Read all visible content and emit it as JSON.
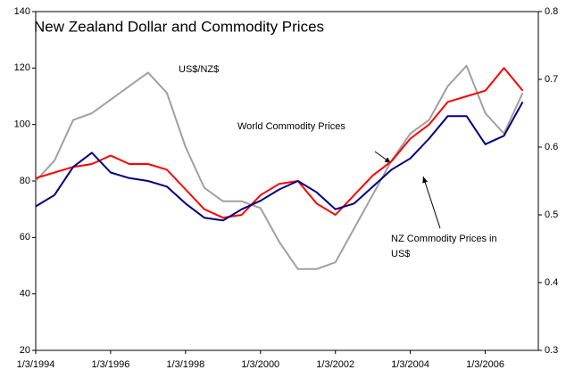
{
  "chart_data": {
    "type": "line",
    "title": "New Zealand Dollar and Commodity Prices",
    "x": [
      "1/3/1994",
      "1/9/1994",
      "1/3/1995",
      "1/9/1995",
      "1/3/1996",
      "1/9/1996",
      "1/3/1997",
      "1/9/1997",
      "1/3/1998",
      "1/9/1998",
      "1/3/1999",
      "1/9/1999",
      "1/3/2000",
      "1/9/2000",
      "1/3/2001",
      "1/9/2001",
      "1/3/2002",
      "1/9/2002",
      "1/3/2003",
      "1/9/2003",
      "1/3/2004",
      "1/9/2004",
      "1/3/2005",
      "1/9/2005",
      "1/3/2006",
      "1/9/2006",
      "1/3/2007"
    ],
    "xlim": [
      "1/3/1994",
      "1/8/2007"
    ],
    "xticks": [
      "1/3/1994",
      "1/3/1996",
      "1/3/1998",
      "1/3/2000",
      "1/3/2002",
      "1/3/2004",
      "1/3/2006"
    ],
    "ylim": [
      20,
      140
    ],
    "yticks": [
      20,
      40,
      60,
      80,
      100,
      120,
      140
    ],
    "y2lim": [
      0.3,
      0.8
    ],
    "y2ticks": [
      0.3,
      0.4,
      0.5,
      0.6,
      0.7,
      0.8
    ],
    "series": [
      {
        "name": "US$/NZ$",
        "color": "#a0a0a0",
        "axis": "y2",
        "values": [
          0.55,
          0.58,
          0.64,
          0.65,
          0.67,
          0.69,
          0.71,
          0.68,
          0.6,
          0.54,
          0.52,
          0.52,
          0.51,
          0.46,
          0.42,
          0.42,
          0.43,
          0.48,
          0.53,
          0.58,
          0.62,
          0.64,
          0.69,
          0.72,
          0.65,
          0.62,
          0.68
        ]
      },
      {
        "name": "World Commodity Prices",
        "color": "#ff0000",
        "values": [
          81,
          83,
          85,
          86,
          89,
          86,
          86,
          84,
          77,
          70,
          67,
          68,
          75,
          79,
          80,
          72,
          68,
          75,
          82,
          87,
          95,
          100,
          108,
          110,
          112,
          120,
          112
        ]
      },
      {
        "name": "NZ Commodity Prices in US$",
        "color": "#000080",
        "values": [
          71,
          75,
          85,
          90,
          83,
          81,
          80,
          78,
          72,
          67,
          66,
          70,
          73,
          77,
          80,
          76,
          70,
          72,
          78,
          84,
          88,
          95,
          103,
          103,
          93,
          96,
          108
        ]
      }
    ],
    "annotations": [
      {
        "lines": [
          "US$/NZ$"
        ]
      },
      {
        "lines": [
          "World Commodity Prices"
        ]
      },
      {
        "lines": [
          "NZ Commodity Prices in",
          "US$"
        ]
      }
    ]
  }
}
